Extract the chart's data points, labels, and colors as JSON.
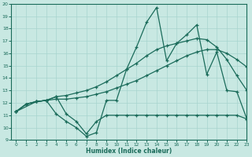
{
  "xlabel": "Humidex (Indice chaleur)",
  "xlim": [
    -0.5,
    23
  ],
  "ylim": [
    9,
    20
  ],
  "xticks": [
    0,
    1,
    2,
    3,
    4,
    5,
    6,
    7,
    8,
    9,
    10,
    11,
    12,
    13,
    14,
    15,
    16,
    17,
    18,
    19,
    20,
    21,
    22,
    23
  ],
  "yticks": [
    9,
    10,
    11,
    12,
    13,
    14,
    15,
    16,
    17,
    18,
    19,
    20
  ],
  "bg_color": "#c8e8e2",
  "line_color": "#1a6b5a",
  "grid_color": "#a8d4ce",
  "lines": [
    {
      "x": [
        0,
        1,
        2,
        3,
        4,
        5,
        6,
        7,
        8,
        9,
        10,
        11,
        12,
        13,
        14,
        15,
        16,
        17,
        18,
        19,
        20,
        21,
        22,
        23
      ],
      "y": [
        11.3,
        11.9,
        12.1,
        12.2,
        12.3,
        12.3,
        12.4,
        12.5,
        12.7,
        12.9,
        13.2,
        13.5,
        13.8,
        14.2,
        14.6,
        15.0,
        15.4,
        15.8,
        16.1,
        16.3,
        16.3,
        16.0,
        15.5,
        14.9
      ]
    },
    {
      "x": [
        0,
        1,
        2,
        3,
        4,
        5,
        6,
        7,
        8,
        9,
        10,
        11,
        12,
        13,
        14,
        15,
        16,
        17,
        18,
        19,
        20,
        21,
        22,
        23
      ],
      "y": [
        11.3,
        11.9,
        12.1,
        12.2,
        12.5,
        12.6,
        12.8,
        13.0,
        13.3,
        13.7,
        14.2,
        14.7,
        15.2,
        15.8,
        16.3,
        16.6,
        16.8,
        17.0,
        17.2,
        17.1,
        16.5,
        15.5,
        14.2,
        13.0
      ]
    },
    {
      "x": [
        0,
        2,
        3,
        4,
        5,
        6,
        7,
        8,
        9,
        10,
        11,
        12,
        13,
        14,
        15,
        16,
        17,
        18,
        19,
        20,
        21,
        22,
        23
      ],
      "y": [
        11.3,
        12.1,
        12.2,
        11.1,
        10.5,
        10.0,
        9.3,
        9.6,
        12.2,
        12.2,
        14.7,
        16.5,
        18.5,
        19.7,
        15.4,
        16.8,
        17.5,
        18.3,
        14.3,
        16.1,
        13.0,
        12.9,
        10.7
      ]
    },
    {
      "x": [
        0,
        1,
        2,
        3,
        4,
        5,
        6,
        7,
        8,
        9,
        10,
        11,
        12,
        13,
        14,
        15,
        16,
        17,
        18,
        19,
        20,
        21,
        22,
        23
      ],
      "y": [
        11.3,
        11.9,
        12.1,
        12.2,
        12.5,
        11.1,
        10.5,
        9.5,
        10.5,
        11.0,
        11.0,
        11.0,
        11.0,
        11.0,
        11.0,
        11.0,
        11.0,
        11.0,
        11.0,
        11.0,
        11.0,
        11.0,
        11.0,
        10.7
      ]
    }
  ]
}
